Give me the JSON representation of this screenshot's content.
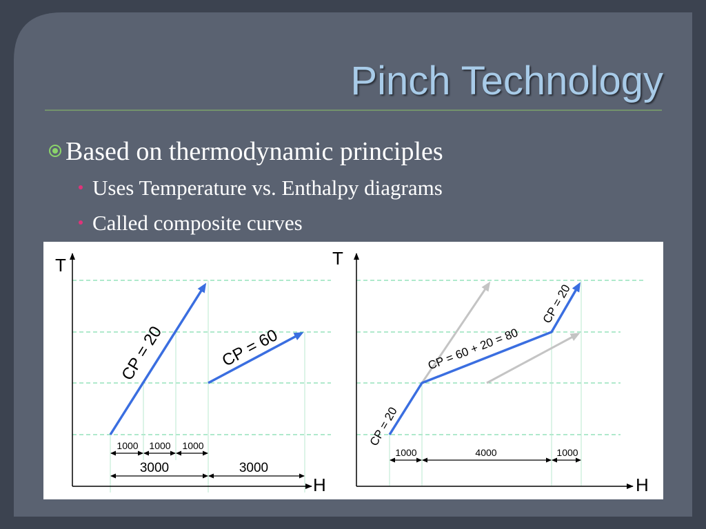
{
  "title": "Pinch Technology",
  "bullets": [
    {
      "text": "Based on thermodynamic principles",
      "sub": [
        "Uses Temperature vs. Enthalpy diagrams",
        "Called composite curves"
      ]
    }
  ],
  "diagram": {
    "left": {
      "y_axis": "T",
      "x_axis": "H",
      "curve_labels": [
        "CP = 20",
        "CP = 60"
      ],
      "segment_labels": [
        "1000",
        "1000",
        "1000"
      ],
      "total_labels": [
        "3000",
        "3000"
      ]
    },
    "right": {
      "y_axis": "T",
      "x_axis": "H",
      "curve_labels": [
        "CP = 20",
        "CP = 60 + 20 = 80",
        "CP = 20"
      ],
      "segment_labels": [
        "1000",
        "4000",
        "1000"
      ]
    }
  }
}
